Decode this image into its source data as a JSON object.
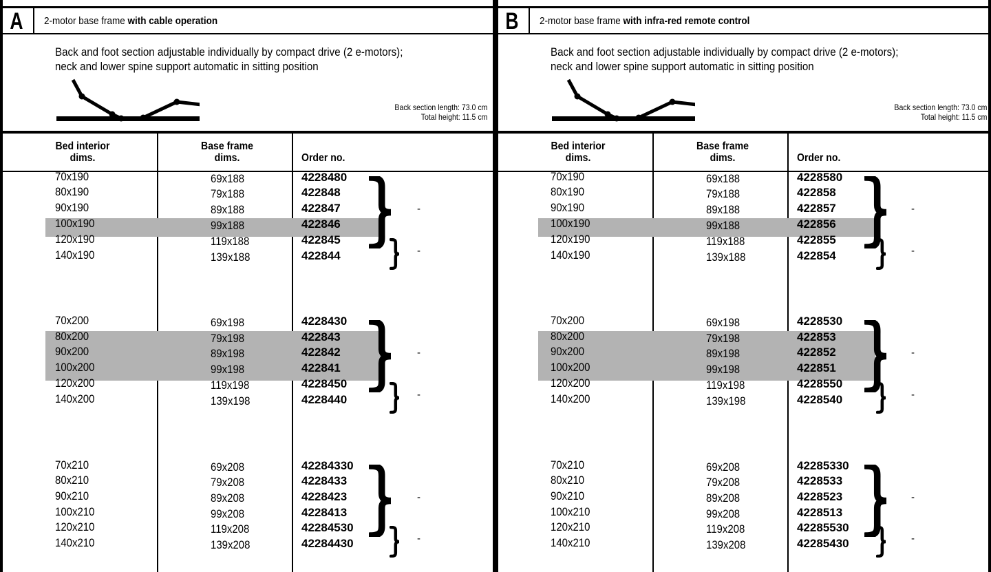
{
  "panels": [
    {
      "letter": "A",
      "title_prefix": "2-motor base frame ",
      "title_bold": "with cable operation",
      "description": [
        "Back and foot section adjustable individually by compact drive (2 e-motors);",
        "neck and lower spine support automatic in sitting position"
      ],
      "specs": [
        "Back section length: 73.0 cm",
        "Total height: 11.5 cm"
      ],
      "columns": [
        "Bed interior dims.",
        "Base frame dims.",
        "Order no."
      ],
      "groups": [
        {
          "rows": [
            {
              "interior": "70x190",
              "frame": "69x188",
              "order": "4228480",
              "shaded": false
            },
            {
              "interior": "80x190",
              "frame": "79x188",
              "order": "422848",
              "shaded": false
            },
            {
              "interior": "90x190",
              "frame": "89x188",
              "order": "422847",
              "shaded": false
            },
            {
              "interior": "100x190",
              "frame": "99x188",
              "order": "422846",
              "shaded": true
            },
            {
              "interior": "120x190",
              "frame": "119x188",
              "order": "422845",
              "shaded": false
            },
            {
              "interior": "140x190",
              "frame": "139x188",
              "order": "422844",
              "shaded": false
            }
          ],
          "brace_note_large": "-",
          "brace_note_small": "-"
        },
        {
          "rows": [
            {
              "interior": "70x200",
              "frame": "69x198",
              "order": "4228430",
              "shaded": false
            },
            {
              "interior": "80x200",
              "frame": "79x198",
              "order": "422843",
              "shaded": true
            },
            {
              "interior": "90x200",
              "frame": "89x198",
              "order": "422842",
              "shaded": true
            },
            {
              "interior": "100x200",
              "frame": "99x198",
              "order": "422841",
              "shaded": true
            },
            {
              "interior": "120x200",
              "frame": "119x198",
              "order": "4228450",
              "shaded": false
            },
            {
              "interior": "140x200",
              "frame": "139x198",
              "order": "4228440",
              "shaded": false
            }
          ],
          "brace_note_large": "-",
          "brace_note_small": "-"
        },
        {
          "rows": [
            {
              "interior": "70x210",
              "frame": "69x208",
              "order": "42284330",
              "shaded": false
            },
            {
              "interior": "80x210",
              "frame": "79x208",
              "order": "4228433",
              "shaded": false
            },
            {
              "interior": "90x210",
              "frame": "89x208",
              "order": "4228423",
              "shaded": false
            },
            {
              "interior": "100x210",
              "frame": "99x208",
              "order": "4228413",
              "shaded": false
            },
            {
              "interior": "120x210",
              "frame": "119x208",
              "order": "42284530",
              "shaded": false
            },
            {
              "interior": "140x210",
              "frame": "139x208",
              "order": "42284430",
              "shaded": false
            }
          ],
          "brace_note_large": "-",
          "brace_note_small": "-"
        }
      ]
    },
    {
      "letter": "B",
      "title_prefix": "2-motor base frame ",
      "title_bold": "with infra-red remote control",
      "description": [
        "Back and foot section adjustable individually by compact drive (2 e-motors);",
        "neck and lower spine support automatic in sitting position"
      ],
      "specs": [
        "Back section length: 73.0 cm",
        "Total height: 11.5 cm"
      ],
      "columns": [
        "Bed interior dims.",
        "Base frame dims.",
        "Order no."
      ],
      "groups": [
        {
          "rows": [
            {
              "interior": "70x190",
              "frame": "69x188",
              "order": "4228580",
              "shaded": false
            },
            {
              "interior": "80x190",
              "frame": "79x188",
              "order": "422858",
              "shaded": false
            },
            {
              "interior": "90x190",
              "frame": "89x188",
              "order": "422857",
              "shaded": false
            },
            {
              "interior": "100x190",
              "frame": "99x188",
              "order": "422856",
              "shaded": true
            },
            {
              "interior": "120x190",
              "frame": "119x188",
              "order": "422855",
              "shaded": false
            },
            {
              "interior": "140x190",
              "frame": "139x188",
              "order": "422854",
              "shaded": false
            }
          ],
          "brace_note_large": "-",
          "brace_note_small": "-"
        },
        {
          "rows": [
            {
              "interior": "70x200",
              "frame": "69x198",
              "order": "4228530",
              "shaded": false
            },
            {
              "interior": "80x200",
              "frame": "79x198",
              "order": "422853",
              "shaded": true
            },
            {
              "interior": "90x200",
              "frame": "89x198",
              "order": "422852",
              "shaded": true
            },
            {
              "interior": "100x200",
              "frame": "99x198",
              "order": "422851",
              "shaded": true
            },
            {
              "interior": "120x200",
              "frame": "119x198",
              "order": "4228550",
              "shaded": false
            },
            {
              "interior": "140x200",
              "frame": "139x198",
              "order": "4228540",
              "shaded": false
            }
          ],
          "brace_note_large": "-",
          "brace_note_small": "-"
        },
        {
          "rows": [
            {
              "interior": "70x210",
              "frame": "69x208",
              "order": "42285330",
              "shaded": false
            },
            {
              "interior": "80x210",
              "frame": "79x208",
              "order": "4228533",
              "shaded": false
            },
            {
              "interior": "90x210",
              "frame": "89x208",
              "order": "4228523",
              "shaded": false
            },
            {
              "interior": "100x210",
              "frame": "99x208",
              "order": "4228513",
              "shaded": false
            },
            {
              "interior": "120x210",
              "frame": "119x208",
              "order": "42285530",
              "shaded": false
            },
            {
              "interior": "140x210",
              "frame": "139x208",
              "order": "42285430",
              "shaded": false
            }
          ],
          "brace_note_large": "-",
          "brace_note_small": "-"
        }
      ]
    }
  ]
}
